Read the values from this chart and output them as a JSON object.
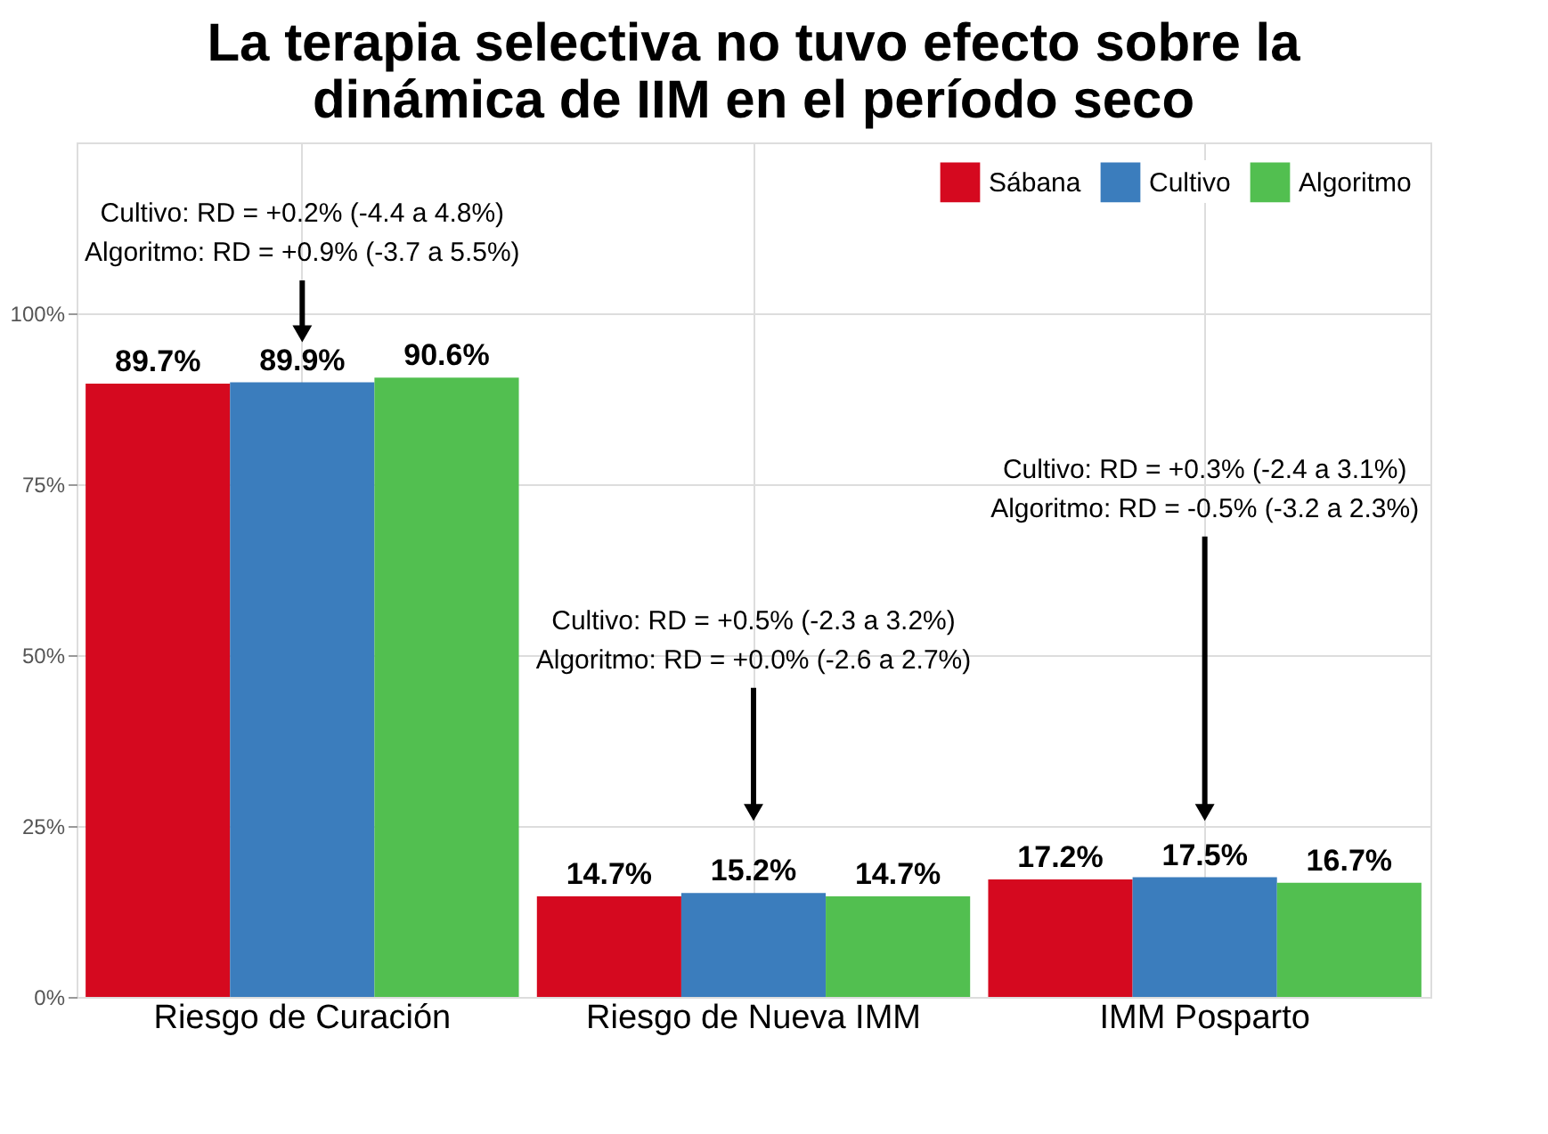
{
  "chart_data": {
    "type": "bar",
    "title": [
      "La terapia selectiva no tuvo efecto sobre la",
      "dinámica de IIM en el período seco"
    ],
    "categories": [
      "Riesgo de Curación",
      "Riesgo de Nueva IMM",
      "IMM Posparto"
    ],
    "series": [
      {
        "name": "Sábana",
        "color": "#d5091f",
        "values": [
          89.7,
          14.7,
          17.2
        ],
        "value_labels": [
          "89.7%",
          "14.7%",
          "17.2%"
        ]
      },
      {
        "name": "Cultivo",
        "color": "#3b7dbd",
        "values": [
          89.9,
          15.2,
          17.5
        ],
        "value_labels": [
          "89.9%",
          "15.2%",
          "17.5%"
        ]
      },
      {
        "name": "Algoritmo",
        "color": "#52bf50",
        "values": [
          90.6,
          14.7,
          16.7
        ],
        "value_labels": [
          "90.6%",
          "14.7%",
          "16.7%"
        ]
      }
    ],
    "ylim": [
      0,
      125
    ],
    "yticks": [
      {
        "value": 0,
        "label": "0%"
      },
      {
        "value": 25,
        "label": "25%"
      },
      {
        "value": 50,
        "label": "50%"
      },
      {
        "value": 75,
        "label": "75%"
      },
      {
        "value": 100,
        "label": "100%"
      }
    ],
    "grid": true,
    "legend": "top right",
    "annotations": [
      {
        "text": "Cultivo: RD = +0.2% (-4.4 a 4.8%)\nAlgoritmo: RD = +0.9% (-3.7 a 5.5%)",
        "x": "Riesgo de Curación",
        "y": 97
      },
      {
        "text": "Cultivo: RD = +0.5% (-2.3 a 3.2%)\nAlgoritmo: RD = +0.0% (-2.6 a 2.7%)",
        "x": "Riesgo de Nueva IMM",
        "y": 27
      },
      {
        "text": "Cultivo: RD = +0.3% (-2.4 a 3.1%)\nAlgoritmo: RD = -0.5% (-3.2 a 2.3%)",
        "x": "IMM Posparto",
        "y": 27
      }
    ]
  }
}
